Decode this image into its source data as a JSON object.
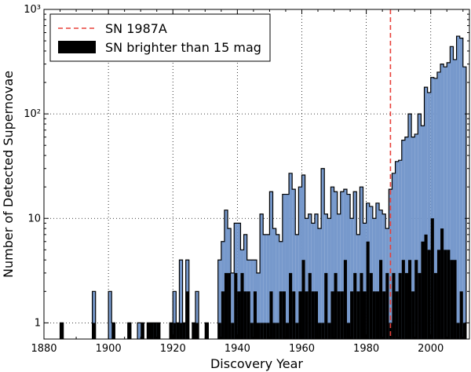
{
  "chart_data": {
    "type": "bar",
    "xlabel": "Discovery Year",
    "ylabel": "Number of Detected Supernovae",
    "xlim": [
      1880,
      2012
    ],
    "ylim": [
      0.7,
      1000
    ],
    "yscale": "log",
    "grid": true,
    "legend_position": "top-left",
    "x_ticks": [
      "1880",
      "1900",
      "1920",
      "1940",
      "1960",
      "1980",
      "2000"
    ],
    "y_ticks": [
      {
        "value": 1,
        "label": "1"
      },
      {
        "value": 10,
        "label": "10"
      },
      {
        "value": 100,
        "label": "10²"
      },
      {
        "value": 1000,
        "label": "10³"
      }
    ],
    "colors": {
      "all_sn": "#7799cc",
      "bright_sn": "#000000",
      "sn1987a": "#e8403a"
    },
    "annotation": {
      "label": "SN 1987A",
      "x": 1987
    },
    "series": [
      {
        "name": "",
        "style": "step-filled",
        "x": [
          1885,
          1895,
          1900,
          1901,
          1906,
          1909,
          1910,
          1912,
          1913,
          1914,
          1915,
          1919,
          1920,
          1921,
          1922,
          1923,
          1924,
          1926,
          1927,
          1930,
          1934,
          1935,
          1936,
          1937,
          1938,
          1939,
          1940,
          1941,
          1942,
          1943,
          1944,
          1945,
          1946,
          1947,
          1948,
          1949,
          1950,
          1951,
          1952,
          1953,
          1954,
          1955,
          1956,
          1957,
          1958,
          1959,
          1960,
          1961,
          1962,
          1963,
          1964,
          1965,
          1966,
          1967,
          1968,
          1969,
          1970,
          1971,
          1972,
          1973,
          1974,
          1975,
          1976,
          1977,
          1978,
          1979,
          1980,
          1981,
          1982,
          1983,
          1984,
          1985,
          1986,
          1987,
          1988,
          1989,
          1990,
          1991,
          1992,
          1993,
          1994,
          1995,
          1996,
          1997,
          1998,
          1999,
          2000,
          2001,
          2002,
          2003,
          2004,
          2005,
          2006,
          2007,
          2008,
          2009,
          2010
        ],
        "values": [
          1,
          2,
          2,
          1,
          1,
          1,
          1,
          1,
          1,
          1,
          1,
          1,
          2,
          1,
          4,
          1,
          4,
          1,
          2,
          1,
          4,
          6,
          12,
          8,
          3,
          9,
          9,
          5,
          7,
          4,
          4,
          4,
          3,
          11,
          7,
          7,
          18,
          8,
          7,
          6,
          17,
          17,
          27,
          19,
          7,
          20,
          26,
          10,
          11,
          9,
          11,
          8,
          30,
          11,
          10,
          20,
          18,
          11,
          18,
          19,
          17,
          10,
          18,
          7,
          20,
          9,
          14,
          13,
          10,
          14,
          12,
          11,
          8,
          19,
          27,
          35,
          36,
          56,
          60,
          100,
          60,
          64,
          100,
          77,
          180,
          160,
          223,
          219,
          251,
          300,
          282,
          309,
          441,
          331,
          555,
          531,
          282
        ]
      },
      {
        "name": "SN brighter than 15 mag",
        "style": "step-filled",
        "x": [
          1885,
          1895,
          1901,
          1906,
          1910,
          1912,
          1913,
          1914,
          1915,
          1919,
          1920,
          1921,
          1922,
          1923,
          1924,
          1926,
          1927,
          1930,
          1934,
          1935,
          1936,
          1937,
          1938,
          1939,
          1940,
          1941,
          1942,
          1943,
          1944,
          1945,
          1946,
          1947,
          1948,
          1949,
          1950,
          1951,
          1952,
          1953,
          1954,
          1955,
          1956,
          1957,
          1958,
          1959,
          1960,
          1961,
          1962,
          1963,
          1964,
          1965,
          1966,
          1967,
          1968,
          1969,
          1970,
          1971,
          1972,
          1973,
          1974,
          1975,
          1976,
          1977,
          1978,
          1979,
          1980,
          1981,
          1982,
          1983,
          1984,
          1985,
          1986,
          1987,
          1988,
          1989,
          1990,
          1991,
          1992,
          1993,
          1994,
          1995,
          1996,
          1997,
          1998,
          1999,
          2000,
          2001,
          2002,
          2003,
          2004,
          2005,
          2006,
          2007,
          2008,
          2009,
          2010
        ],
        "values": [
          1,
          1,
          1,
          1,
          1,
          1,
          1,
          1,
          1,
          1,
          1,
          1,
          1,
          1,
          2,
          1,
          1,
          1,
          1,
          2,
          3,
          3,
          1,
          3,
          2,
          3,
          2,
          2,
          1,
          2,
          1,
          1,
          1,
          1,
          2,
          1,
          1,
          2,
          2,
          1,
          3,
          2,
          1,
          2,
          4,
          2,
          3,
          2,
          2,
          1,
          1,
          3,
          1,
          2,
          3,
          2,
          2,
          4,
          1,
          2,
          3,
          2,
          3,
          2,
          6,
          3,
          2,
          2,
          4,
          2,
          3,
          1,
          3,
          2,
          3,
          4,
          3,
          4,
          2,
          4,
          3,
          6,
          7,
          5,
          10,
          3,
          5,
          8,
          5,
          5,
          4,
          4,
          1,
          2,
          1
        ]
      }
    ],
    "legend": [
      {
        "label": "SN 1987A",
        "style": "dashed-line"
      },
      {
        "label": "SN brighter than 15 mag",
        "style": "filled-box"
      }
    ]
  }
}
